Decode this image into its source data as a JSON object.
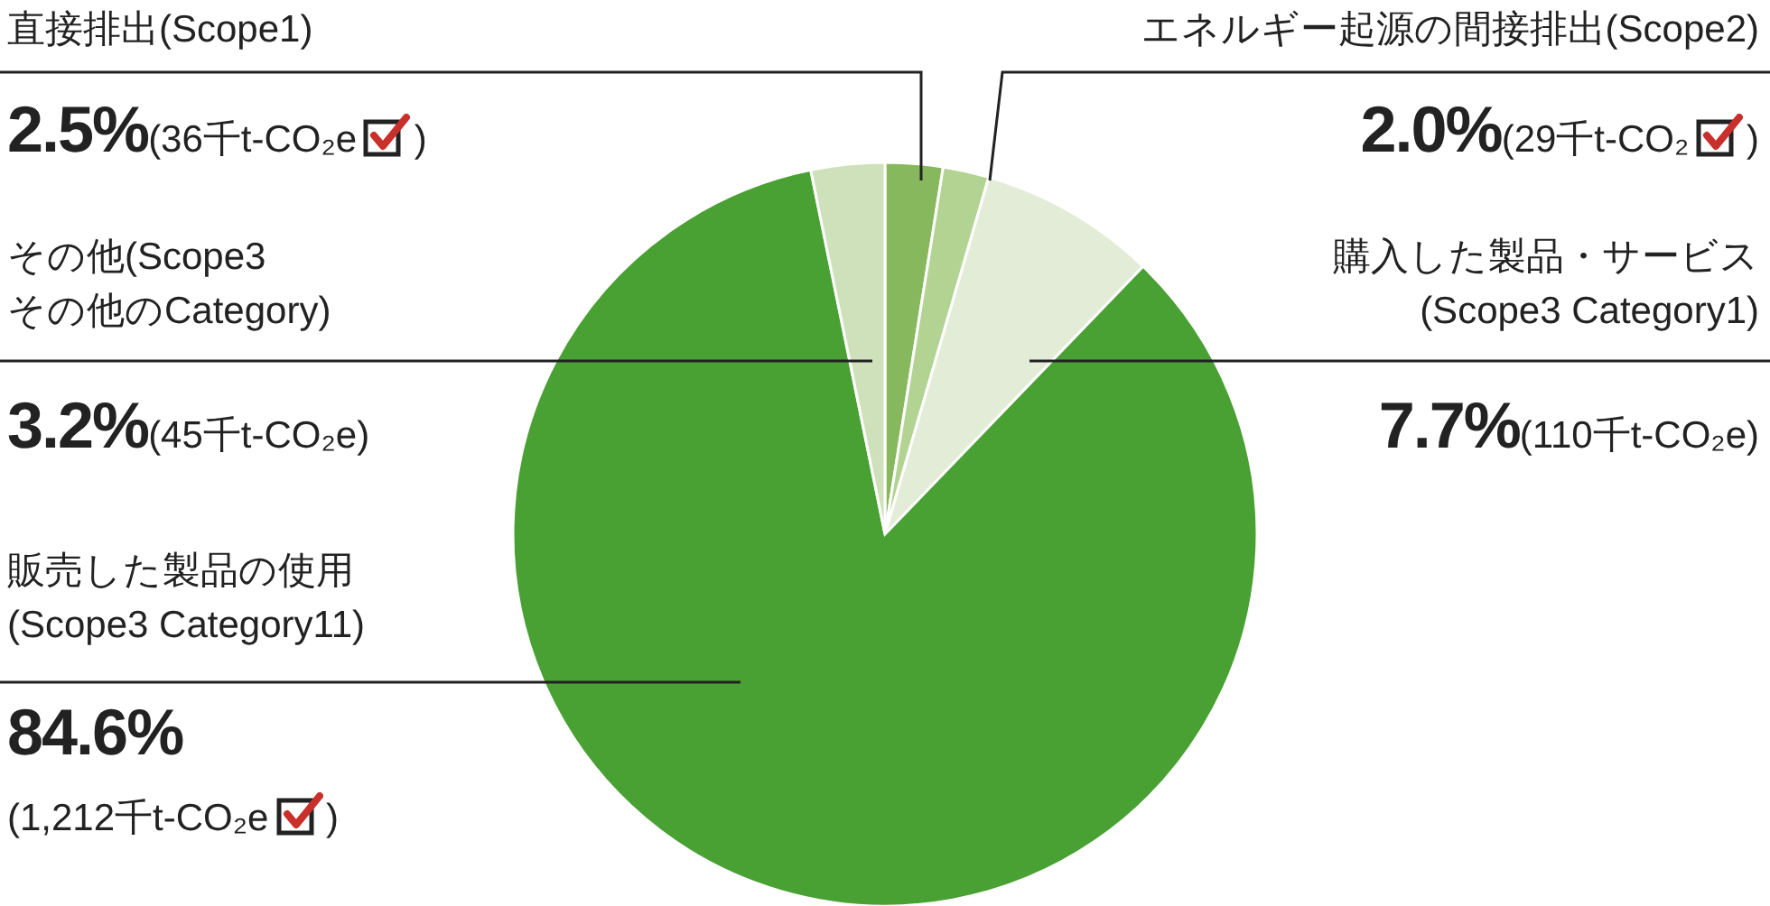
{
  "chart_data": {
    "type": "pie",
    "categories": [
      "直接排出(Scope1)",
      "エネルギー起源の間接排出(Scope2)",
      "購入した製品・サービス\n(Scope3 Category1)",
      "販売した製品の使用\n(Scope3 Category11)",
      "その他(Scope3\nその他のCategory)"
    ],
    "values": [
      2.5,
      2.0,
      7.7,
      84.6,
      3.2
    ],
    "colors": [
      "#88b85e",
      "#b3d393",
      "#e3ecd6",
      "#49a033",
      "#cfe1bb"
    ],
    "value_labels": [
      "2.5%",
      "2.0%",
      "7.7%",
      "84.6%",
      "3.2%"
    ],
    "annotations": [
      "(36千t-CO₂e )",
      "(29千t-CO₂ )",
      "(110千t-CO₂e)",
      "(1,212千t-CO₂e )",
      "(45千t-CO₂e)"
    ]
  }
}
